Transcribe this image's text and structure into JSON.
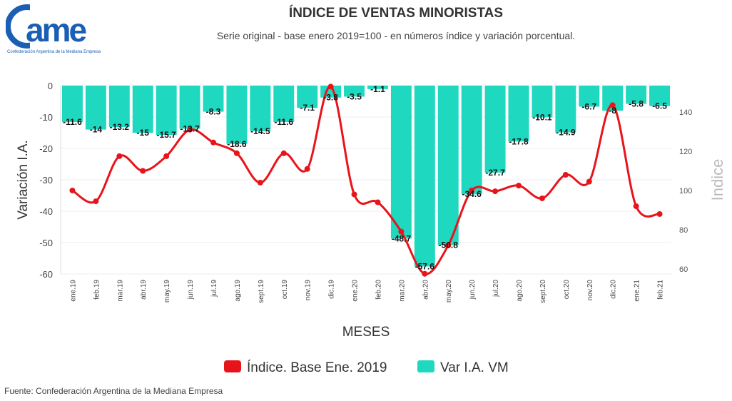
{
  "logo": {
    "text": "came",
    "tagline": "Confederación Argentina de la Mediana Empresa",
    "color": "#1a5fb4"
  },
  "source": "Fuente: Confederación Argentina de la Mediana Empresa",
  "chart_data": {
    "type": "bar+line",
    "title": "ÍNDICE DE VENTAS MINORISTAS",
    "subtitle": "Serie original - base enero 2019=100 - en números índice y variación porcentual.",
    "xlabel": "MESES",
    "ylabel_left": "Variación I.A.",
    "ylabel_right": "Indice",
    "ylim_left": [
      -60,
      0
    ],
    "yticks_left": [
      0,
      -10,
      -20,
      -30,
      -40,
      -50,
      -60
    ],
    "ylim_right": [
      57.4,
      153.5
    ],
    "yticks_right": [
      60,
      80,
      100,
      120,
      140
    ],
    "grid": true,
    "legend_position": "bottom",
    "categories": [
      "ene.19",
      "feb.19",
      "mar.19",
      "abr.19",
      "may.19",
      "jun.19",
      "jul.19",
      "ago.19",
      "sept.19",
      "oct.19",
      "nov.19",
      "dic.19",
      "ene.20",
      "feb.20",
      "mar.20",
      "abr.20",
      "may.20",
      "jun.20",
      "jul.20",
      "ago.20",
      "sept.20",
      "oct.20",
      "nov.20",
      "dic.20",
      "ene.21",
      "feb.21"
    ],
    "series": [
      {
        "name": "Índice. Base Ene. 2019",
        "type": "line",
        "axis": "right",
        "color": "#e8141b",
        "values": [
          100,
          94.5,
          117.5,
          110,
          117.5,
          131,
          124.5,
          119,
          104,
          119,
          111,
          153,
          98,
          94,
          79,
          57.5,
          72,
          100,
          99.6,
          102.5,
          96,
          108,
          104.5,
          143.5,
          92,
          88
        ]
      },
      {
        "name": "Var I.A. VM",
        "type": "bar",
        "axis": "left",
        "color": "#1ed8c0",
        "values": [
          -11.6,
          -14,
          -13.2,
          -15,
          -15.7,
          -13.7,
          -8.3,
          -18.6,
          -14.5,
          -11.6,
          -7.1,
          -3.8,
          -3.5,
          -1.1,
          -48.7,
          -57.6,
          -50.8,
          -34.6,
          -27.7,
          -17.8,
          -10.1,
          -14.9,
          -6.7,
          -8,
          -5.8,
          -6.5
        ],
        "labels": [
          "-11.6",
          "-14",
          "-13.2",
          "-15",
          "-15.7",
          "-13.7",
          "-8.3",
          "-18.6",
          "-14.5",
          "-11.6",
          "-7.1",
          "-3.8",
          "-3.5",
          "-1.1",
          "-48.7",
          "-57.6",
          "-50.8",
          "-34.6",
          "-27.7",
          "-17.8",
          "-10.1",
          "-14.9",
          "-6.7",
          "-8",
          "-5.8",
          "-6.5"
        ]
      }
    ]
  }
}
